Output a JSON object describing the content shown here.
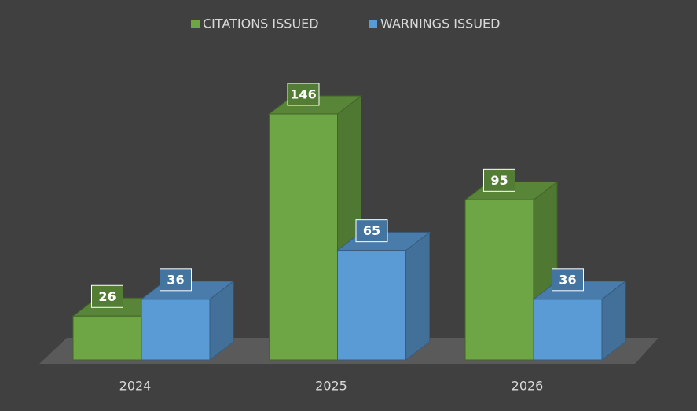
{
  "chart_data": {
    "type": "bar3d",
    "categories": [
      "2024",
      "2025",
      "2026"
    ],
    "series": [
      {
        "name": "CITATIONS ISSUED",
        "color": "#6ea646",
        "values": [
          26,
          146,
          95
        ]
      },
      {
        "name": "WARNINGS ISSUED",
        "color": "#5b9bd5",
        "values": [
          36,
          65,
          36
        ]
      }
    ]
  }
}
